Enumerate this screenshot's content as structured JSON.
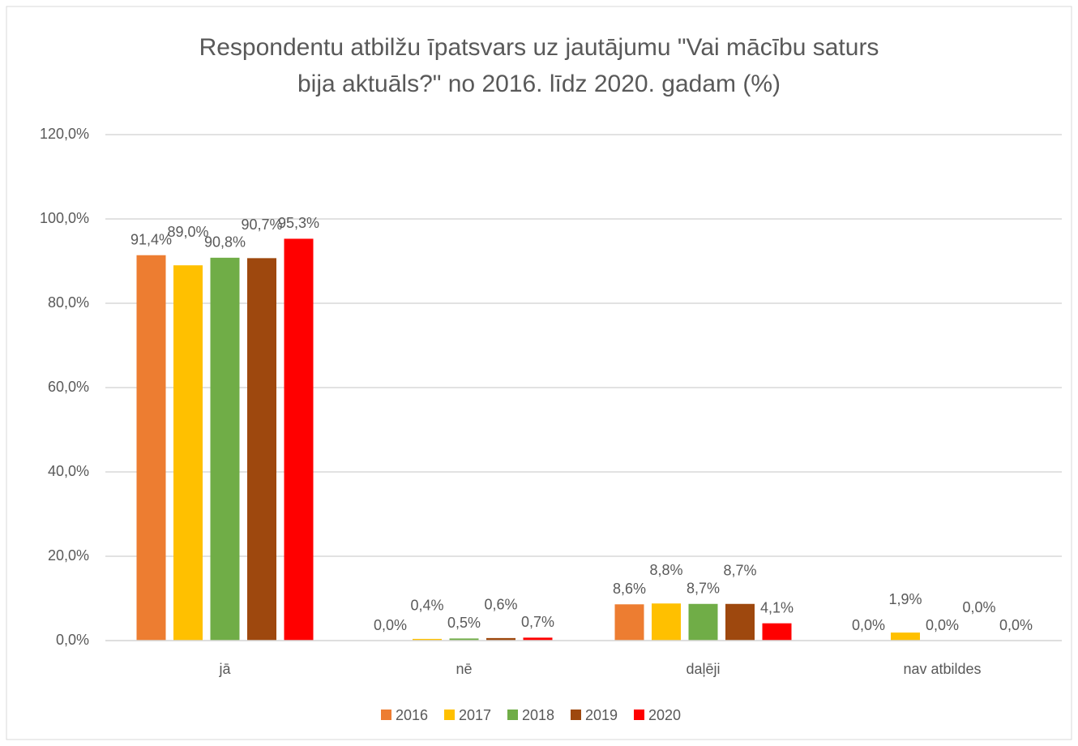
{
  "chart_data": {
    "type": "bar",
    "title": [
      "Respondentu atbilžu īpatsvars uz jautājumu \"Vai mācību saturs",
      "bija aktuāls?\" no 2016. līdz 2020. gadam (%)"
    ],
    "categories": [
      "jā",
      "nē",
      "daļēji",
      "nav atbildes"
    ],
    "series": [
      {
        "name": "2016",
        "color": "#ed7d31",
        "values": [
          91.4,
          0.0,
          8.6,
          0.0
        ],
        "value_labels": [
          "91,4%",
          "0,0%",
          "8,6%",
          "0,0%"
        ]
      },
      {
        "name": "2017",
        "color": "#ffc000",
        "values": [
          89.0,
          0.4,
          8.8,
          1.9
        ],
        "value_labels": [
          "89,0%",
          "0,4%",
          "8,8%",
          "1,9%"
        ]
      },
      {
        "name": "2018",
        "color": "#70ad47",
        "values": [
          90.8,
          0.5,
          8.7,
          0.0
        ],
        "value_labels": [
          "90,8%",
          "0,5%",
          "8,7%",
          "0,0%"
        ]
      },
      {
        "name": "2019",
        "color": "#9e480e",
        "values": [
          90.7,
          0.6,
          8.7,
          0.0
        ],
        "value_labels": [
          "90,7%",
          "0,6%",
          "8,7%",
          "0,0%"
        ]
      },
      {
        "name": "2020",
        "color": "#ff0000",
        "values": [
          95.3,
          0.7,
          4.1,
          0.0
        ],
        "value_labels": [
          "95,3%",
          "0,7%",
          "4,1%",
          "0,0%"
        ]
      }
    ],
    "ylim": [
      0,
      120
    ],
    "yticks": [
      {
        "value": 0,
        "label": "0,0%"
      },
      {
        "value": 20,
        "label": "20,0%"
      },
      {
        "value": 40,
        "label": "40,0%"
      },
      {
        "value": 60,
        "label": "60,0%"
      },
      {
        "value": 80,
        "label": "80,0%"
      },
      {
        "value": 100,
        "label": "100,0%"
      },
      {
        "value": 120,
        "label": "120,0%"
      }
    ],
    "grid": true,
    "legend": "bottom"
  }
}
